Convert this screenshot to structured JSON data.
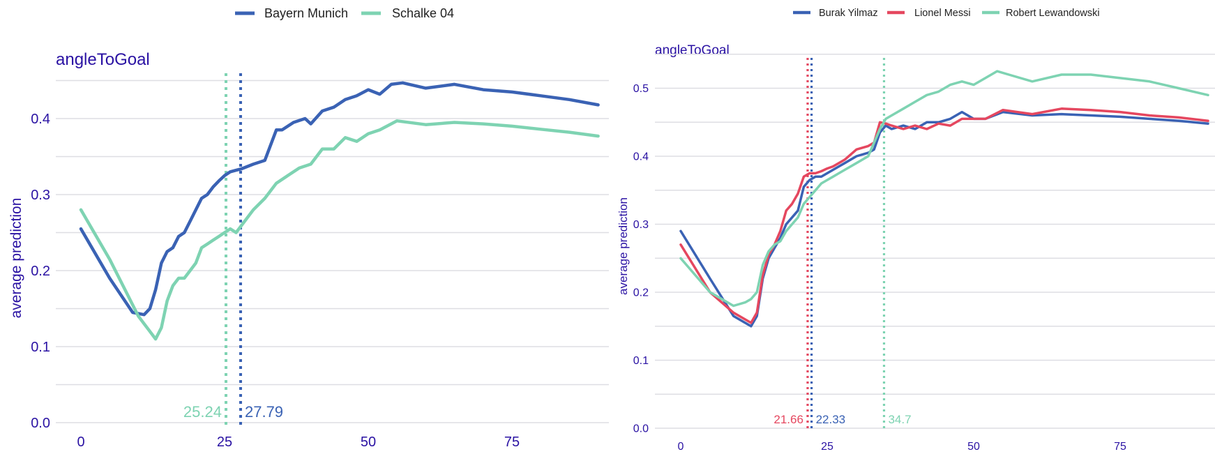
{
  "colors": {
    "axis_text": "#2a12a3",
    "grid": "#dedee3",
    "blue": "#3a62b4",
    "green": "#7ed3b2",
    "red": "#e5475f"
  },
  "chart_data": [
    {
      "type": "line",
      "title": "angleToGoal",
      "xlabel": "",
      "ylabel": "average prediction",
      "xlim": [
        -3,
        92
      ],
      "ylim": [
        0,
        0.45
      ],
      "xticks": [
        0,
        25,
        50,
        75
      ],
      "yticks": [
        0.0,
        0.1,
        0.2,
        0.3,
        0.4
      ],
      "ytick_labels": [
        "0.0",
        "0.1",
        "0.2",
        "0.3",
        "0.4"
      ],
      "grid": true,
      "legend_position": "top",
      "series": [
        {
          "name": "Bayern Munich",
          "color": "#3a62b4",
          "x": [
            0,
            5,
            9,
            11,
            12,
            13,
            14,
            15,
            16,
            17,
            18,
            19,
            20,
            21,
            22,
            23,
            24,
            25,
            26,
            27,
            28,
            30,
            32,
            34,
            35,
            37,
            39,
            40,
            42,
            44,
            46,
            48,
            50,
            52,
            54,
            56,
            60,
            65,
            70,
            75,
            80,
            85,
            90
          ],
          "y": [
            0.255,
            0.19,
            0.145,
            0.142,
            0.15,
            0.175,
            0.21,
            0.225,
            0.23,
            0.245,
            0.25,
            0.265,
            0.28,
            0.295,
            0.3,
            0.31,
            0.318,
            0.325,
            0.33,
            0.332,
            0.334,
            0.34,
            0.345,
            0.385,
            0.385,
            0.395,
            0.4,
            0.393,
            0.41,
            0.415,
            0.425,
            0.43,
            0.438,
            0.432,
            0.445,
            0.447,
            0.44,
            0.445,
            0.438,
            0.435,
            0.43,
            0.425,
            0.418
          ]
        },
        {
          "name": "Schalke 04",
          "color": "#7ed3b2",
          "x": [
            0,
            5,
            10,
            12,
            13,
            14,
            15,
            16,
            17,
            18,
            19,
            20,
            21,
            22,
            23,
            24,
            25,
            26,
            27,
            28,
            30,
            32,
            34,
            36,
            38,
            40,
            42,
            44,
            46,
            48,
            50,
            52,
            55,
            60,
            65,
            70,
            75,
            80,
            85,
            90
          ],
          "y": [
            0.28,
            0.215,
            0.14,
            0.12,
            0.11,
            0.125,
            0.16,
            0.18,
            0.19,
            0.19,
            0.2,
            0.21,
            0.23,
            0.235,
            0.24,
            0.245,
            0.25,
            0.255,
            0.25,
            0.26,
            0.28,
            0.295,
            0.315,
            0.325,
            0.335,
            0.34,
            0.36,
            0.36,
            0.375,
            0.37,
            0.38,
            0.385,
            0.397,
            0.392,
            0.395,
            0.393,
            0.39,
            0.386,
            0.382,
            0.377
          ]
        }
      ],
      "vlines": [
        {
          "x": 25.24,
          "label": "25.24",
          "color": "#7ed3b2"
        },
        {
          "x": 27.79,
          "label": "27.79",
          "color": "#3a62b4"
        }
      ]
    },
    {
      "type": "line",
      "title": "angleToGoal",
      "xlabel": "",
      "ylabel": "average prediction",
      "xlim": [
        -3,
        92
      ],
      "ylim": [
        0,
        0.55
      ],
      "xticks": [
        0,
        25,
        50,
        75
      ],
      "yticks": [
        0.0,
        0.1,
        0.2,
        0.3,
        0.4,
        0.5
      ],
      "ytick_labels": [
        "0.0",
        "0.1",
        "0.2",
        "0.3",
        "0.4",
        "0.5"
      ],
      "grid": true,
      "legend_position": "top",
      "series": [
        {
          "name": "Burak Yilmaz",
          "color": "#3a62b4",
          "x": [
            0,
            5,
            9,
            11,
            12,
            13,
            14,
            15,
            16,
            17,
            18,
            19,
            20,
            21,
            22,
            23,
            24,
            25,
            26,
            27,
            28,
            30,
            32,
            33,
            34,
            35,
            36,
            38,
            40,
            42,
            44,
            46,
            48,
            50,
            52,
            55,
            60,
            65,
            70,
            75,
            80,
            85,
            90
          ],
          "y": [
            0.29,
            0.22,
            0.165,
            0.155,
            0.15,
            0.165,
            0.22,
            0.25,
            0.265,
            0.28,
            0.3,
            0.31,
            0.32,
            0.355,
            0.365,
            0.37,
            0.37,
            0.375,
            0.38,
            0.385,
            0.39,
            0.4,
            0.405,
            0.41,
            0.435,
            0.445,
            0.44,
            0.445,
            0.44,
            0.45,
            0.45,
            0.455,
            0.465,
            0.455,
            0.455,
            0.465,
            0.46,
            0.462,
            0.46,
            0.458,
            0.455,
            0.452,
            0.448
          ]
        },
        {
          "name": "Lionel Messi",
          "color": "#e5475f",
          "x": [
            0,
            5,
            9,
            11,
            12,
            13,
            14,
            15,
            16,
            17,
            18,
            19,
            20,
            21,
            22,
            23,
            24,
            25,
            26,
            27,
            28,
            30,
            32,
            33,
            34,
            35,
            36,
            38,
            40,
            42,
            44,
            46,
            48,
            50,
            52,
            55,
            60,
            65,
            70,
            75,
            80,
            85,
            90
          ],
          "y": [
            0.27,
            0.2,
            0.17,
            0.16,
            0.155,
            0.17,
            0.225,
            0.255,
            0.27,
            0.29,
            0.32,
            0.33,
            0.345,
            0.37,
            0.375,
            0.375,
            0.378,
            0.382,
            0.385,
            0.39,
            0.395,
            0.41,
            0.415,
            0.42,
            0.45,
            0.448,
            0.445,
            0.44,
            0.445,
            0.44,
            0.448,
            0.445,
            0.455,
            0.455,
            0.455,
            0.468,
            0.462,
            0.47,
            0.468,
            0.465,
            0.46,
            0.457,
            0.452
          ]
        },
        {
          "name": "Robert Lewandowski",
          "color": "#7ed3b2",
          "x": [
            0,
            5,
            9,
            11,
            12,
            13,
            14,
            15,
            16,
            17,
            18,
            19,
            20,
            21,
            22,
            23,
            24,
            25,
            26,
            27,
            28,
            30,
            32,
            34,
            35,
            36,
            38,
            40,
            42,
            44,
            46,
            48,
            50,
            52,
            54,
            56,
            60,
            65,
            70,
            75,
            80,
            85,
            90
          ],
          "y": [
            0.25,
            0.2,
            0.18,
            0.185,
            0.19,
            0.2,
            0.24,
            0.26,
            0.27,
            0.275,
            0.29,
            0.3,
            0.31,
            0.33,
            0.34,
            0.35,
            0.36,
            0.365,
            0.37,
            0.375,
            0.38,
            0.39,
            0.4,
            0.44,
            0.455,
            0.46,
            0.47,
            0.48,
            0.49,
            0.495,
            0.505,
            0.51,
            0.505,
            0.515,
            0.525,
            0.52,
            0.51,
            0.52,
            0.52,
            0.515,
            0.51,
            0.5,
            0.49
          ]
        }
      ],
      "vlines": [
        {
          "x": 21.66,
          "label": "21.66",
          "color": "#e5475f"
        },
        {
          "x": 22.33,
          "label": "22.33",
          "color": "#3a62b4"
        },
        {
          "x": 34.7,
          "label": "34.7",
          "color": "#7ed3b2"
        }
      ]
    }
  ]
}
